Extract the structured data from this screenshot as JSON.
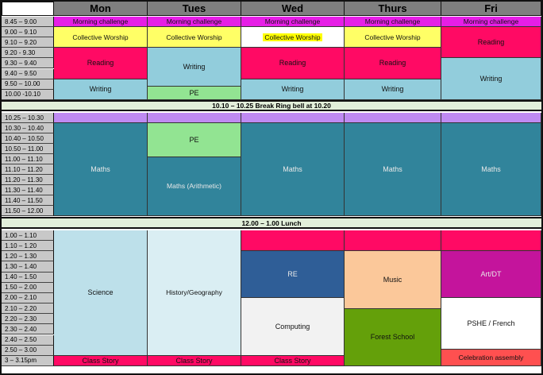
{
  "days": [
    "Mon",
    "Tues",
    "Wed",
    "Thurs",
    "Fri"
  ],
  "colors": {
    "header": "#7f7f7f",
    "time_column": "#c8c8c8",
    "magenta": "#e61ee6",
    "yellow": "#ffff66",
    "pink": "#ff0a64",
    "light_blue": "#92cddc",
    "light_green": "#92e492",
    "lavender": "#bf8af2",
    "teal": "#31849b",
    "pale_blue": "#bde0ea",
    "very_pale_blue": "#daeef3",
    "steel_blue": "#2f5e97",
    "off_white": "#f2f2f2",
    "peach": "#fbc89a",
    "olive_green": "#64a00a",
    "purple_magenta": "#c4149c",
    "white": "#ffffff",
    "coral": "#ff5050",
    "break_band": "#e2efda"
  },
  "blocks": [
    {
      "id": "morning",
      "times": [
        "8.45 – 9.00",
        "9.00 – 9.10",
        "9.10 – 9.20",
        "9.20 - 9.30",
        "9.30 – 9.40",
        "9.40 – 9.50",
        "9.50 – 10.00",
        "10.00 -10.10"
      ],
      "columns": [
        [
          {
            "label": "Morning challenge",
            "span": [
              0,
              1
            ],
            "color": "magenta"
          },
          {
            "label": "Collective Worship",
            "span": [
              1,
              3
            ],
            "color": "yellow"
          },
          {
            "label": "Reading",
            "span": [
              3,
              6
            ],
            "color": "pink"
          },
          {
            "label": "Writing",
            "span": [
              6,
              8
            ],
            "color": "light_blue"
          }
        ],
        [
          {
            "label": "Morning challenge",
            "span": [
              0,
              1
            ],
            "color": "magenta"
          },
          {
            "label": "Collective Worship",
            "span": [
              1,
              3
            ],
            "color": "yellow"
          },
          {
            "label": "Writing",
            "span": [
              3,
              6.7
            ],
            "color": "light_blue"
          },
          {
            "label": "PE",
            "span": [
              6.7,
              8
            ],
            "color": "light_green"
          }
        ],
        [
          {
            "label": "Morning challenge",
            "span": [
              0,
              1
            ],
            "color": "magenta"
          },
          {
            "label": "Collective Worship",
            "span": [
              1,
              3
            ],
            "color": "white",
            "highlight": true
          },
          {
            "label": "Reading",
            "span": [
              3,
              6
            ],
            "color": "pink"
          },
          {
            "label": "Writing",
            "span": [
              6,
              8
            ],
            "color": "light_blue"
          }
        ],
        [
          {
            "label": "Morning challenge",
            "span": [
              0,
              1
            ],
            "color": "magenta"
          },
          {
            "label": "Collective Worship",
            "span": [
              1,
              3
            ],
            "color": "yellow"
          },
          {
            "label": "Reading",
            "span": [
              3,
              6
            ],
            "color": "pink"
          },
          {
            "label": "Writing",
            "span": [
              6,
              8
            ],
            "color": "light_blue"
          }
        ],
        [
          {
            "label": "Morning challenge",
            "span": [
              0,
              1
            ],
            "color": "magenta"
          },
          {
            "label": "Reading",
            "span": [
              1,
              4
            ],
            "color": "pink"
          },
          {
            "label": "Writing",
            "span": [
              4,
              8
            ],
            "color": "light_blue"
          }
        ]
      ]
    },
    {
      "id": "break",
      "band": "10.10 – 10.25 Break Ring bell at 10.20"
    },
    {
      "id": "midmorning",
      "times": [
        "10.25 – 10.30",
        "10.30 – 10.40",
        "10.40 – 10.50",
        "10.50 – 11.00",
        "11.00 – 11.10",
        "11.10 – 11.20",
        "11.20 – 11.30",
        "11.30 – 11.40",
        "11.40 – 11.50",
        "11.50 – 12.00"
      ],
      "columns": [
        [
          {
            "label": "",
            "span": [
              0,
              1
            ],
            "color": "lavender"
          },
          {
            "label": "Maths",
            "span": [
              1,
              10
            ],
            "color": "teal"
          }
        ],
        [
          {
            "label": "",
            "span": [
              0,
              1
            ],
            "color": "lavender"
          },
          {
            "label": "PE",
            "span": [
              1,
              4.3
            ],
            "color": "light_green"
          },
          {
            "label": "Maths (Arithmetic)",
            "span": [
              4.3,
              10
            ],
            "color": "teal"
          }
        ],
        [
          {
            "label": "",
            "span": [
              0,
              1
            ],
            "color": "lavender"
          },
          {
            "label": "Maths",
            "span": [
              1,
              10
            ],
            "color": "teal"
          }
        ],
        [
          {
            "label": "",
            "span": [
              0,
              1
            ],
            "color": "lavender"
          },
          {
            "label": "Maths",
            "span": [
              1,
              10
            ],
            "color": "teal"
          }
        ],
        [
          {
            "label": "",
            "span": [
              0,
              1
            ],
            "color": "lavender"
          },
          {
            "label": "Maths",
            "span": [
              1,
              10
            ],
            "color": "teal"
          }
        ]
      ]
    },
    {
      "id": "lunch",
      "band": "12.00 – 1.00 Lunch"
    },
    {
      "id": "afternoon",
      "times": [
        "1.00 – 1.10",
        "1.10 – 1.20",
        "1.20 – 1.30",
        "1.30 – 1.40",
        "1.40 – 1.50",
        "1.50 – 2.00",
        "2.00 – 2.10",
        "2.10 – 2.20",
        "2.20 – 2.30",
        "2.30 – 2.40",
        "2.40 – 2.50",
        "2.50 – 3.00",
        "3 – 3.15pm"
      ],
      "columns": [
        [
          {
            "label": "Science",
            "span": [
              0,
              12
            ],
            "color": "pale_blue"
          },
          {
            "label": "Class Story",
            "span": [
              12,
              13
            ],
            "color": "pink"
          }
        ],
        [
          {
            "label": "History/Geography",
            "span": [
              0,
              12
            ],
            "color": "very_pale_blue"
          },
          {
            "label": "Class Story",
            "span": [
              12,
              13
            ],
            "color": "pink"
          }
        ],
        [
          {
            "label": "",
            "span": [
              0,
              2
            ],
            "color": "pink"
          },
          {
            "label": "RE",
            "span": [
              2,
              6.5
            ],
            "color": "steel_blue"
          },
          {
            "label": "Computing",
            "span": [
              6.5,
              12
            ],
            "color": "off_white"
          },
          {
            "label": "Class Story",
            "span": [
              12,
              13
            ],
            "color": "pink"
          }
        ],
        [
          {
            "label": "",
            "span": [
              0,
              2
            ],
            "color": "pink"
          },
          {
            "label": "Music",
            "span": [
              2,
              7.5
            ],
            "color": "peach"
          },
          {
            "label": "Forest School",
            "span": [
              7.5,
              13
            ],
            "color": "olive_green"
          }
        ],
        [
          {
            "label": "",
            "span": [
              0,
              2
            ],
            "color": "pink"
          },
          {
            "label": "Art/DT",
            "span": [
              2,
              6.5
            ],
            "color": "purple_magenta"
          },
          {
            "label": "PSHE / French",
            "span": [
              6.5,
              11.4
            ],
            "color": "white"
          },
          {
            "label": "Celebration assembly",
            "span": [
              11.4,
              13
            ],
            "color": "coral"
          }
        ]
      ]
    }
  ]
}
